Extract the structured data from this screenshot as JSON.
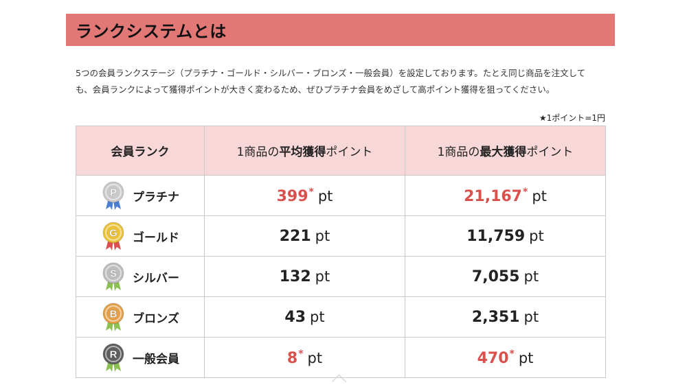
{
  "header": {
    "title": "ランクシステムとは"
  },
  "intro": {
    "line1": "5つの会員ランクステージ（プラチナ・ゴールド・シルバー・ブロンズ・一般会員）を設定しております。たとえ同じ商品を注文して",
    "line2": "も、会員ランクによって獲得ポイントが大きく変わるため、ぜひプラチナ会員をめざして高ポイント獲得を狙ってください。"
  },
  "note": "★1ポイント=1円",
  "table": {
    "col_rank": "会員ランク",
    "col_avg_prefix": "1商品の",
    "col_avg_bold": "平均獲得",
    "col_avg_suffix": "ポイント",
    "col_max_prefix": "1商品の",
    "col_max_bold": "最大獲得",
    "col_max_suffix": "ポイント",
    "unit": "pt",
    "star": "*",
    "rows": [
      {
        "letter": "P",
        "name": "プラチナ",
        "avg": "399",
        "max": "21,167",
        "medal_color": "#c9c9c9",
        "ribbon_color": "#4a7fd1"
      },
      {
        "letter": "G",
        "name": "ゴールド",
        "avg": "221",
        "max": "11,759",
        "medal_color": "#e9c23a",
        "ribbon_color": "#d9504c"
      },
      {
        "letter": "S",
        "name": "シルバー",
        "avg": "132",
        "max": "7,055",
        "medal_color": "#bdbdbd",
        "ribbon_color": "#8cc152"
      },
      {
        "letter": "B",
        "name": "ブロンズ",
        "avg": "43",
        "max": "2,351",
        "medal_color": "#e3a04a",
        "ribbon_color": "#8cc152"
      },
      {
        "letter": "R",
        "name": "一般会員",
        "avg": "8",
        "max": "470",
        "medal_color": "#5e5e5e",
        "ribbon_color": "#8cc152"
      }
    ]
  }
}
